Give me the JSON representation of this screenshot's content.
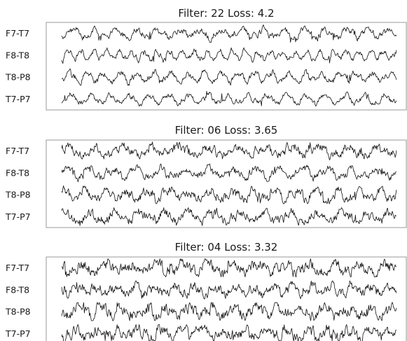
{
  "chart_data": [
    {
      "type": "line",
      "title": "Filter: 22 Loss: 4.2",
      "channels": [
        "F7-T7",
        "F8-T8",
        "T8-P8",
        "T7-P7"
      ]
    },
    {
      "type": "line",
      "title": "Filter: 06 Loss: 3.65",
      "channels": [
        "F7-T7",
        "F8-T8",
        "T8-P8",
        "T7-P7"
      ]
    },
    {
      "type": "line",
      "title": "Filter: 04 Loss: 3.32",
      "channels": [
        "F7-T7",
        "F8-T8",
        "T8-P8",
        "T7-P7"
      ]
    }
  ]
}
